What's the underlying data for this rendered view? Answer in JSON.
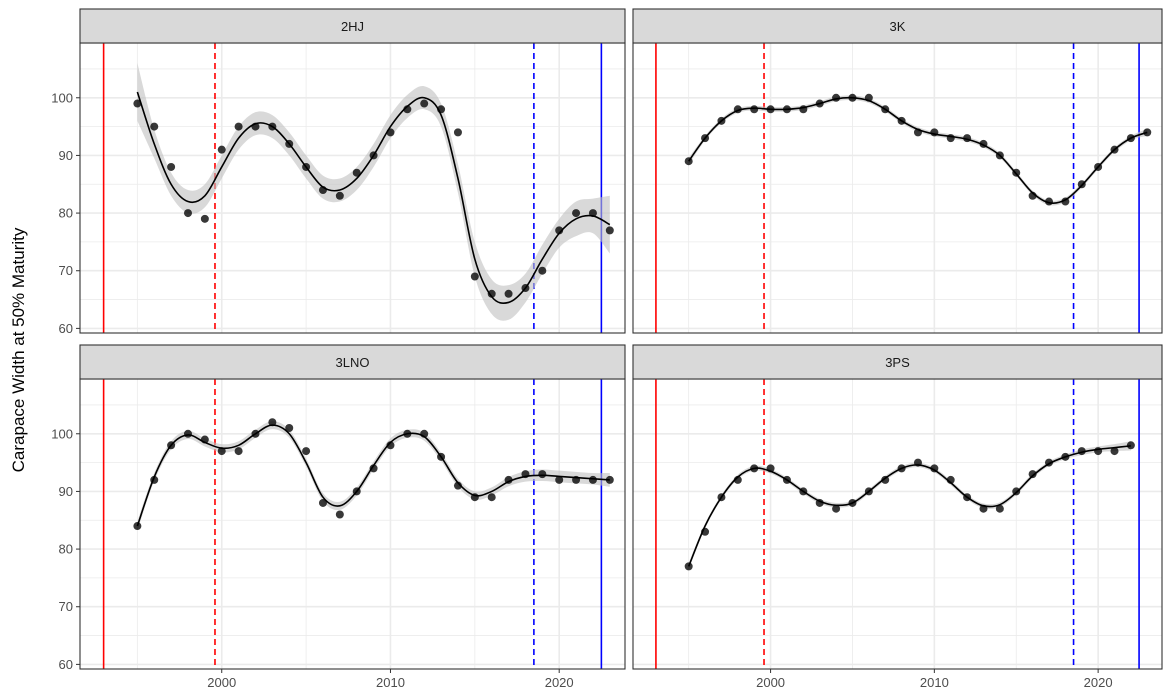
{
  "chart_data": {
    "type": "scatter",
    "title": "",
    "xlabel": "",
    "ylabel": "Carapace Width at 50% Maturity",
    "xlim": [
      1991.6,
      2023.9
    ],
    "ylim": [
      59.2,
      109.5
    ],
    "x_ticks": [
      2000,
      2010,
      2020
    ],
    "y_ticks": [
      60,
      70,
      80,
      90,
      100
    ],
    "grid": true,
    "legend": "none",
    "colors": {
      "points": "#000000",
      "smooth_line": "#000000",
      "ribbon": "#bfbfbf",
      "red_line": "#ff0000",
      "blue_line": "#0000ff",
      "strip": "#d9d9d9",
      "grid": "#ebebeb"
    },
    "reference_lines": [
      {
        "x": 1993,
        "color": "#ff0000",
        "style": "solid"
      },
      {
        "x": 1999.6,
        "color": "#ff0000",
        "style": "dashed"
      },
      {
        "x": 2018.5,
        "color": "#0000ff",
        "style": "dashed"
      },
      {
        "x": 2022.5,
        "color": "#0000ff",
        "style": "solid"
      }
    ],
    "panels": [
      {
        "label": "2HJ",
        "x": [
          1995,
          1996,
          1997,
          1998,
          1999,
          2000,
          2001,
          2002,
          2003,
          2004,
          2005,
          2006,
          2007,
          2008,
          2009,
          2010,
          2011,
          2012,
          2013,
          2014,
          2015,
          2016,
          2017,
          2018,
          2019,
          2020,
          2021,
          2022,
          2023
        ],
        "y": [
          99,
          95,
          88,
          80,
          79,
          91,
          95,
          95,
          95,
          92,
          88,
          84,
          83,
          87,
          90,
          94,
          98,
          99,
          98,
          94,
          69,
          66,
          66,
          67,
          70,
          77,
          80,
          80,
          77
        ],
        "smooth": [
          101,
          92,
          85,
          82,
          83,
          88,
          93,
          95.5,
          95,
          92,
          88,
          84.5,
          84,
          86,
          90,
          95,
          98.5,
          100,
          97,
          86,
          72,
          65.5,
          64.5,
          67,
          72,
          76.5,
          79,
          79.5,
          78
        ],
        "band": [
          5,
          2.5,
          2,
          2,
          2,
          2,
          2,
          2,
          2,
          2,
          2,
          2,
          2,
          2,
          2,
          2,
          2,
          2,
          2,
          2.5,
          3,
          3,
          3,
          2.5,
          2.5,
          2.5,
          3,
          3,
          5
        ]
      },
      {
        "label": "3K",
        "x": [
          1995,
          1996,
          1997,
          1998,
          1999,
          2000,
          2001,
          2002,
          2003,
          2004,
          2005,
          2006,
          2007,
          2008,
          2009,
          2010,
          2011,
          2012,
          2013,
          2014,
          2015,
          2016,
          2017,
          2018,
          2019,
          2020,
          2021,
          2022,
          2023
        ],
        "y": [
          89,
          93,
          96,
          98,
          98,
          98,
          98,
          98,
          99,
          100,
          100,
          100,
          98,
          96,
          94,
          94,
          93,
          93,
          92,
          90,
          87,
          83,
          82,
          82,
          85,
          88,
          91,
          93,
          94
        ],
        "smooth": [
          89,
          93,
          96,
          97.8,
          98.2,
          98,
          98,
          98.3,
          99,
          99.8,
          100,
          99.5,
          98,
          96,
          94.5,
          93.7,
          93.3,
          92.8,
          91.8,
          90,
          86.8,
          83.5,
          81.8,
          82.3,
          84.8,
          88,
          91,
          93,
          94
        ],
        "band": [
          0.6,
          0.4,
          0.4,
          0.4,
          0.4,
          0.4,
          0.4,
          0.4,
          0.4,
          0.4,
          0.4,
          0.4,
          0.4,
          0.4,
          0.4,
          0.4,
          0.4,
          0.4,
          0.4,
          0.4,
          0.4,
          0.4,
          0.4,
          0.4,
          0.4,
          0.4,
          0.4,
          0.4,
          0.6
        ]
      },
      {
        "label": "3LNO",
        "x": [
          1995,
          1996,
          1997,
          1998,
          1999,
          2000,
          2001,
          2002,
          2003,
          2004,
          2005,
          2006,
          2007,
          2008,
          2009,
          2010,
          2011,
          2012,
          2013,
          2014,
          2015,
          2016,
          2017,
          2018,
          2019,
          2020,
          2021,
          2022,
          2023
        ],
        "y": [
          84,
          92,
          98,
          100,
          99,
          97,
          97,
          100,
          102,
          101,
          97,
          88,
          86,
          90,
          94,
          98,
          100,
          100,
          96,
          91,
          89,
          89,
          92,
          93,
          93,
          92,
          92,
          92,
          92
        ],
        "smooth": [
          84,
          92.5,
          98,
          99.8,
          98.5,
          97.5,
          98,
          100,
          101.5,
          100,
          95,
          89,
          87.5,
          90,
          94.5,
          98.5,
          100,
          99.5,
          96,
          91.5,
          89.3,
          90,
          91.7,
          92.6,
          92.8,
          92.6,
          92.4,
          92.2,
          92
        ],
        "band": [
          0.8,
          0.7,
          0.7,
          0.7,
          0.7,
          0.7,
          0.7,
          0.7,
          0.7,
          0.7,
          0.7,
          0.7,
          0.7,
          0.7,
          0.7,
          0.7,
          0.7,
          0.7,
          0.7,
          0.7,
          0.7,
          0.7,
          0.8,
          0.9,
          1,
          1,
          1,
          1,
          1.2
        ]
      },
      {
        "label": "3PS",
        "x": [
          1995,
          1996,
          1997,
          1998,
          1999,
          2000,
          2001,
          2002,
          2003,
          2004,
          2005,
          2006,
          2007,
          2008,
          2009,
          2010,
          2011,
          2012,
          2013,
          2014,
          2015,
          2016,
          2017,
          2018,
          2019,
          2020,
          2021,
          2022
        ],
        "y": [
          77,
          83,
          89,
          92,
          94,
          94,
          92,
          90,
          88,
          87,
          88,
          90,
          92,
          94,
          95,
          94,
          92,
          89,
          87,
          87,
          90,
          93,
          95,
          96,
          97,
          97,
          97,
          98
        ],
        "smooth": [
          77,
          84,
          89,
          92.5,
          94,
          93.5,
          92,
          90,
          88.3,
          87.6,
          88,
          90,
          92.3,
          94,
          94.6,
          93.7,
          91.5,
          89,
          87.5,
          87.7,
          89.8,
          92.7,
          94.8,
          96,
          96.8,
          97.3,
          97.6,
          97.9
        ],
        "band": [
          0.6,
          0.4,
          0.4,
          0.4,
          0.4,
          0.4,
          0.4,
          0.4,
          0.4,
          0.4,
          0.4,
          0.4,
          0.4,
          0.4,
          0.4,
          0.4,
          0.4,
          0.4,
          0.4,
          0.4,
          0.4,
          0.4,
          0.4,
          0.4,
          0.5,
          0.5,
          0.6,
          0.8
        ]
      }
    ]
  }
}
